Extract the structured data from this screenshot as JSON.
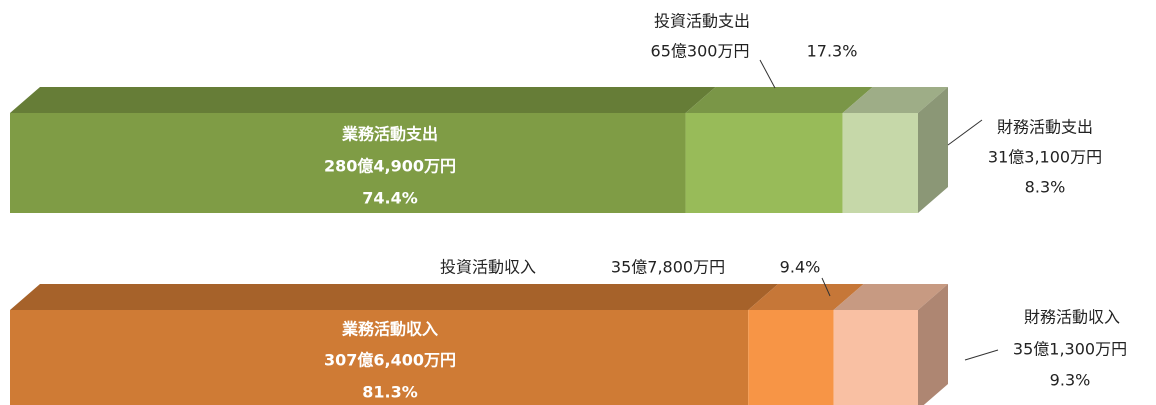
{
  "chart_data": [
    {
      "type": "bar",
      "orientation": "horizontal",
      "stacked": true,
      "categories": [
        null
      ],
      "xlim": [
        0,
        100
      ],
      "series": [
        {
          "name": "業務活動支出",
          "color": "#7f9c45",
          "values": [
            74.4
          ],
          "value_labels": [
            "74.4%"
          ],
          "amount_labels": [
            "280億4,900万円"
          ]
        },
        {
          "name": "投資活動支出",
          "color": "#98bb59",
          "values": [
            17.3
          ],
          "value_labels": [
            "17.3%"
          ],
          "amount_labels": [
            "65億300万円"
          ]
        },
        {
          "name": "財務活動支出",
          "color": "#c6d8a9",
          "values": [
            8.3
          ],
          "value_labels": [
            "8.3%"
          ],
          "amount_labels": [
            "31億3,100万円"
          ]
        }
      ]
    },
    {
      "type": "bar",
      "orientation": "horizontal",
      "stacked": true,
      "categories": [
        null
      ],
      "xlim": [
        0,
        100
      ],
      "series": [
        {
          "name": "業務活動収入",
          "color": "#cf7b35",
          "values": [
            81.3
          ],
          "value_labels": [
            "81.3%"
          ],
          "amount_labels": [
            "307億6,400万円"
          ]
        },
        {
          "name": "投資活動収入",
          "color": "#f79546",
          "values": [
            9.4
          ],
          "value_labels": [
            "9.4%"
          ],
          "amount_labels": [
            "35億7,800万円"
          ]
        },
        {
          "name": "財務活動収入",
          "color": "#f9c0a3",
          "values": [
            9.3
          ],
          "value_labels": [
            "9.3%"
          ],
          "amount_labels": [
            "35億1,300万円"
          ]
        }
      ]
    }
  ]
}
